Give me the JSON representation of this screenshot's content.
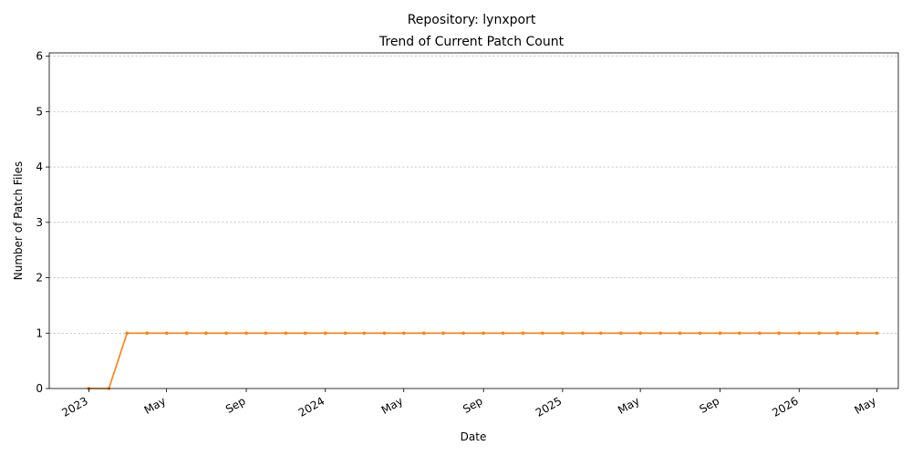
{
  "chart_data": {
    "type": "line",
    "title": "Repository: lynxport",
    "subtitle": "Trend of Current Patch Count",
    "xlabel": "Date",
    "ylabel": "Number of Patch Files",
    "ylim": [
      0,
      6.06
    ],
    "xlim": [
      "2022-11-01",
      "2026-06-03"
    ],
    "y_ticks": [
      0,
      1,
      2,
      3,
      4,
      5,
      6
    ],
    "x_ticks": [
      {
        "date": "2023-01-01",
        "label": "2023"
      },
      {
        "date": "2023-05-01",
        "label": "May"
      },
      {
        "date": "2023-09-01",
        "label": "Sep"
      },
      {
        "date": "2024-01-01",
        "label": "2024"
      },
      {
        "date": "2024-05-01",
        "label": "May"
      },
      {
        "date": "2024-09-01",
        "label": "Sep"
      },
      {
        "date": "2025-01-01",
        "label": "2025"
      },
      {
        "date": "2025-05-01",
        "label": "May"
      },
      {
        "date": "2025-09-01",
        "label": "Sep"
      },
      {
        "date": "2026-01-01",
        "label": "2026"
      },
      {
        "date": "2026-05-01",
        "label": "May"
      }
    ],
    "grid": "y-dashed",
    "color": "#ff7f0e",
    "x": [
      "2023-01-01",
      "2023-02-01",
      "2023-03-01",
      "2023-04-01",
      "2023-05-01",
      "2023-06-01",
      "2023-07-01",
      "2023-08-01",
      "2023-09-01",
      "2023-10-01",
      "2023-11-01",
      "2023-12-01",
      "2024-01-01",
      "2024-02-01",
      "2024-03-01",
      "2024-04-01",
      "2024-05-01",
      "2024-06-01",
      "2024-07-01",
      "2024-08-01",
      "2024-09-01",
      "2024-10-01",
      "2024-11-01",
      "2024-12-01",
      "2025-01-01",
      "2025-02-01",
      "2025-03-01",
      "2025-04-01",
      "2025-05-01",
      "2025-06-01",
      "2025-07-01",
      "2025-08-01",
      "2025-09-01",
      "2025-10-01",
      "2025-11-01",
      "2025-12-01",
      "2026-01-01",
      "2026-02-01",
      "2026-03-01",
      "2026-04-01",
      "2026-05-01"
    ],
    "values": [
      0,
      0,
      1,
      1,
      1,
      1,
      1,
      1,
      1,
      1,
      1,
      1,
      1,
      1,
      1,
      1,
      1,
      1,
      1,
      1,
      1,
      1,
      1,
      1,
      1,
      1,
      1,
      1,
      1,
      1,
      1,
      1,
      1,
      1,
      1,
      1,
      1,
      1,
      1,
      1,
      1
    ]
  }
}
